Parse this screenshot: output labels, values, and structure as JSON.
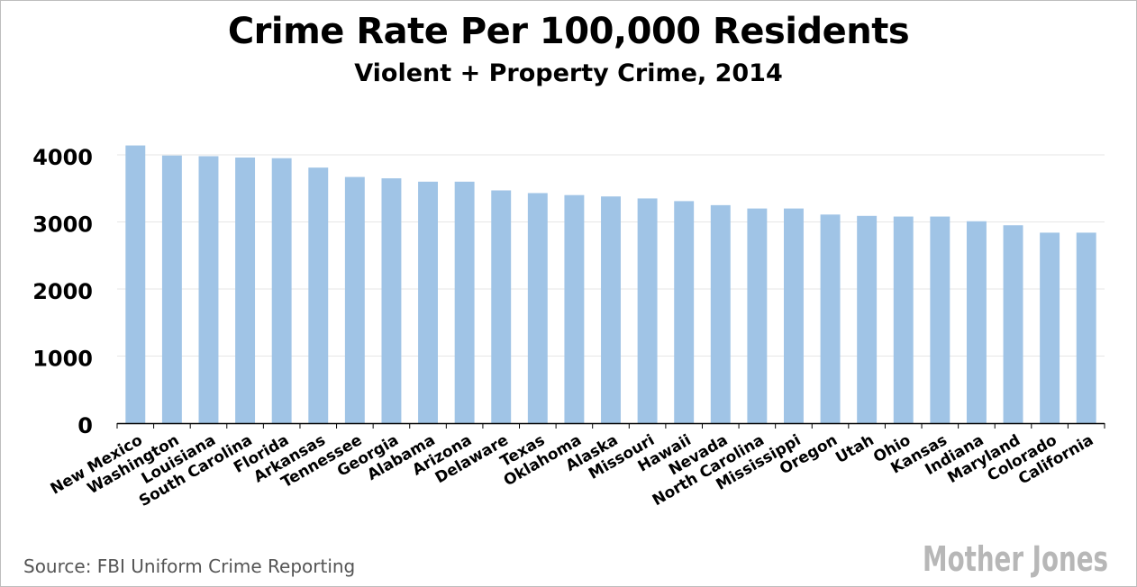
{
  "title": "Crime Rate Per 100,000 Residents",
  "subtitle": "Violent + Property Crime, 2014",
  "source": "Source: FBI Uniform Crime Reporting",
  "logo_text": "Mother Jones",
  "colors": {
    "bar": "#a0c4e6",
    "grid": "#e6e6e6",
    "axis": "#000000",
    "logo": "#b7b7b7"
  },
  "chart_data": {
    "type": "bar",
    "title": "Crime Rate Per 100,000 Residents",
    "subtitle": "Violent + Property Crime, 2014",
    "xlabel": "",
    "ylabel": "",
    "ylim": [
      0,
      4000
    ],
    "yticks": [
      0,
      1000,
      2000,
      3000,
      4000
    ],
    "grid": true,
    "categories": [
      "New Mexico",
      "Washington",
      "Louisiana",
      "South Carolina",
      "Florida",
      "Arkansas",
      "Tennessee",
      "Georgia",
      "Alabama",
      "Arizona",
      "Delaware",
      "Texas",
      "Oklahoma",
      "Alaska",
      "Missouri",
      "Hawaii",
      "Nevada",
      "North Carolina",
      "Mississippi",
      "Oregon",
      "Utah",
      "Ohio",
      "Kansas",
      "Indiana",
      "Maryland",
      "Colorado",
      "California"
    ],
    "values": [
      4140,
      3990,
      3980,
      3960,
      3950,
      3810,
      3670,
      3650,
      3600,
      3600,
      3470,
      3430,
      3400,
      3380,
      3350,
      3310,
      3250,
      3200,
      3200,
      3110,
      3090,
      3080,
      3080,
      3010,
      2950,
      2840,
      2840
    ]
  }
}
